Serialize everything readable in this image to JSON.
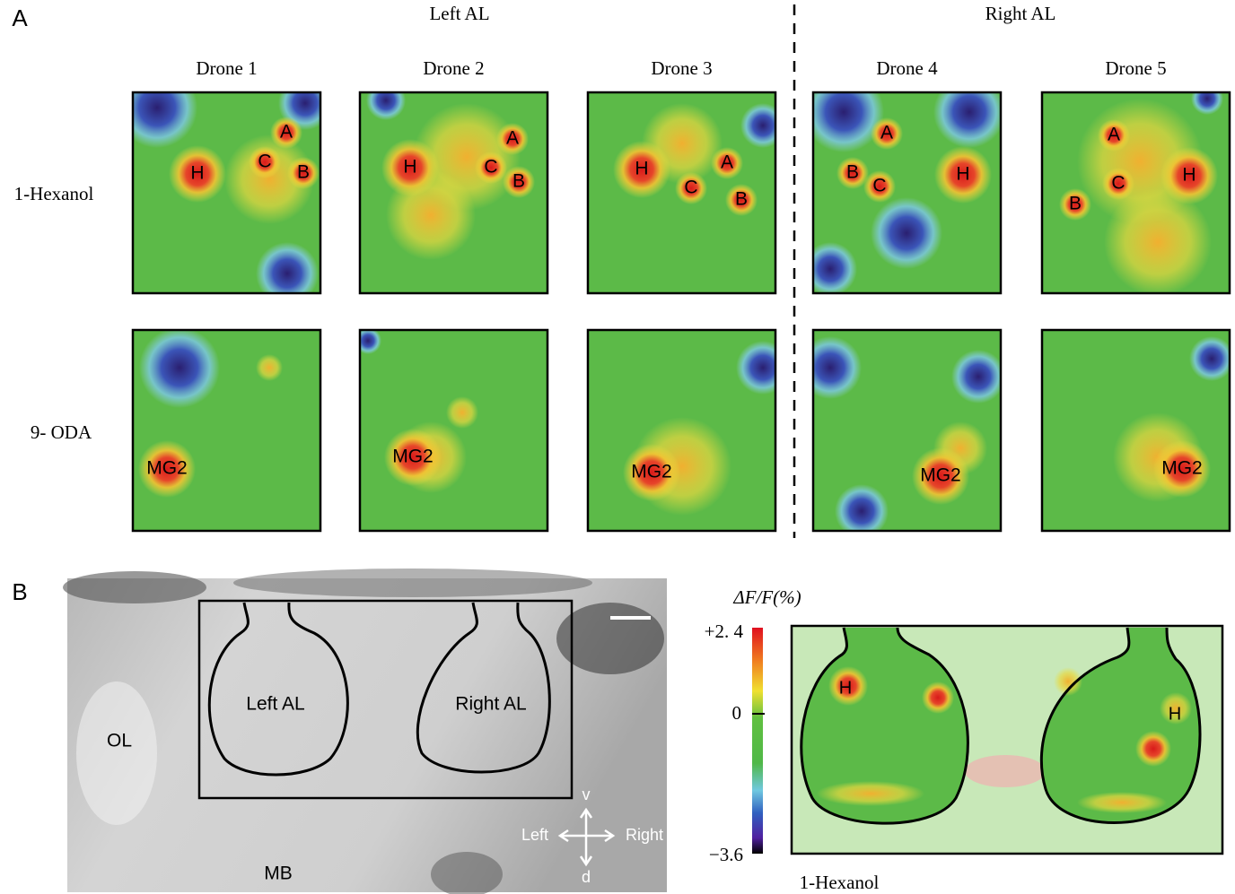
{
  "panel_a": {
    "label": "A",
    "groups": [
      "Left  AL",
      "Right  AL"
    ],
    "columns": [
      "Drone  1",
      "Drone 2",
      "Drone 3",
      "Drone 4",
      "Drone 5"
    ],
    "rows": [
      {
        "odor": "1-Hexanol",
        "cells": [
          [
            "H",
            "A",
            "C",
            "B"
          ],
          [
            "H",
            "A",
            "C",
            "B"
          ],
          [
            "H",
            "A",
            "C",
            "B"
          ],
          [
            "A",
            "B",
            "C",
            "H"
          ],
          [
            "A",
            "C",
            "H",
            "B"
          ]
        ]
      },
      {
        "odor": "9- ODA",
        "cells": [
          [
            "MG2"
          ],
          [
            "MG2"
          ],
          [
            "MG2"
          ],
          [
            "MG2"
          ],
          [
            "MG2"
          ]
        ]
      }
    ]
  },
  "panel_b": {
    "label": "B",
    "image_labels": [
      "Left AL",
      "Right AL",
      "OL",
      "MB"
    ],
    "axes": {
      "up": "v",
      "down": "d",
      "left": "Left",
      "right": "Right"
    },
    "colorbar": {
      "title": "ΔF/F(%)",
      "max": "+2. 4",
      "mid": "0",
      "min": "−3.6"
    },
    "map_labels": [
      "H",
      "H"
    ],
    "odor": "1-Hexanol"
  }
}
